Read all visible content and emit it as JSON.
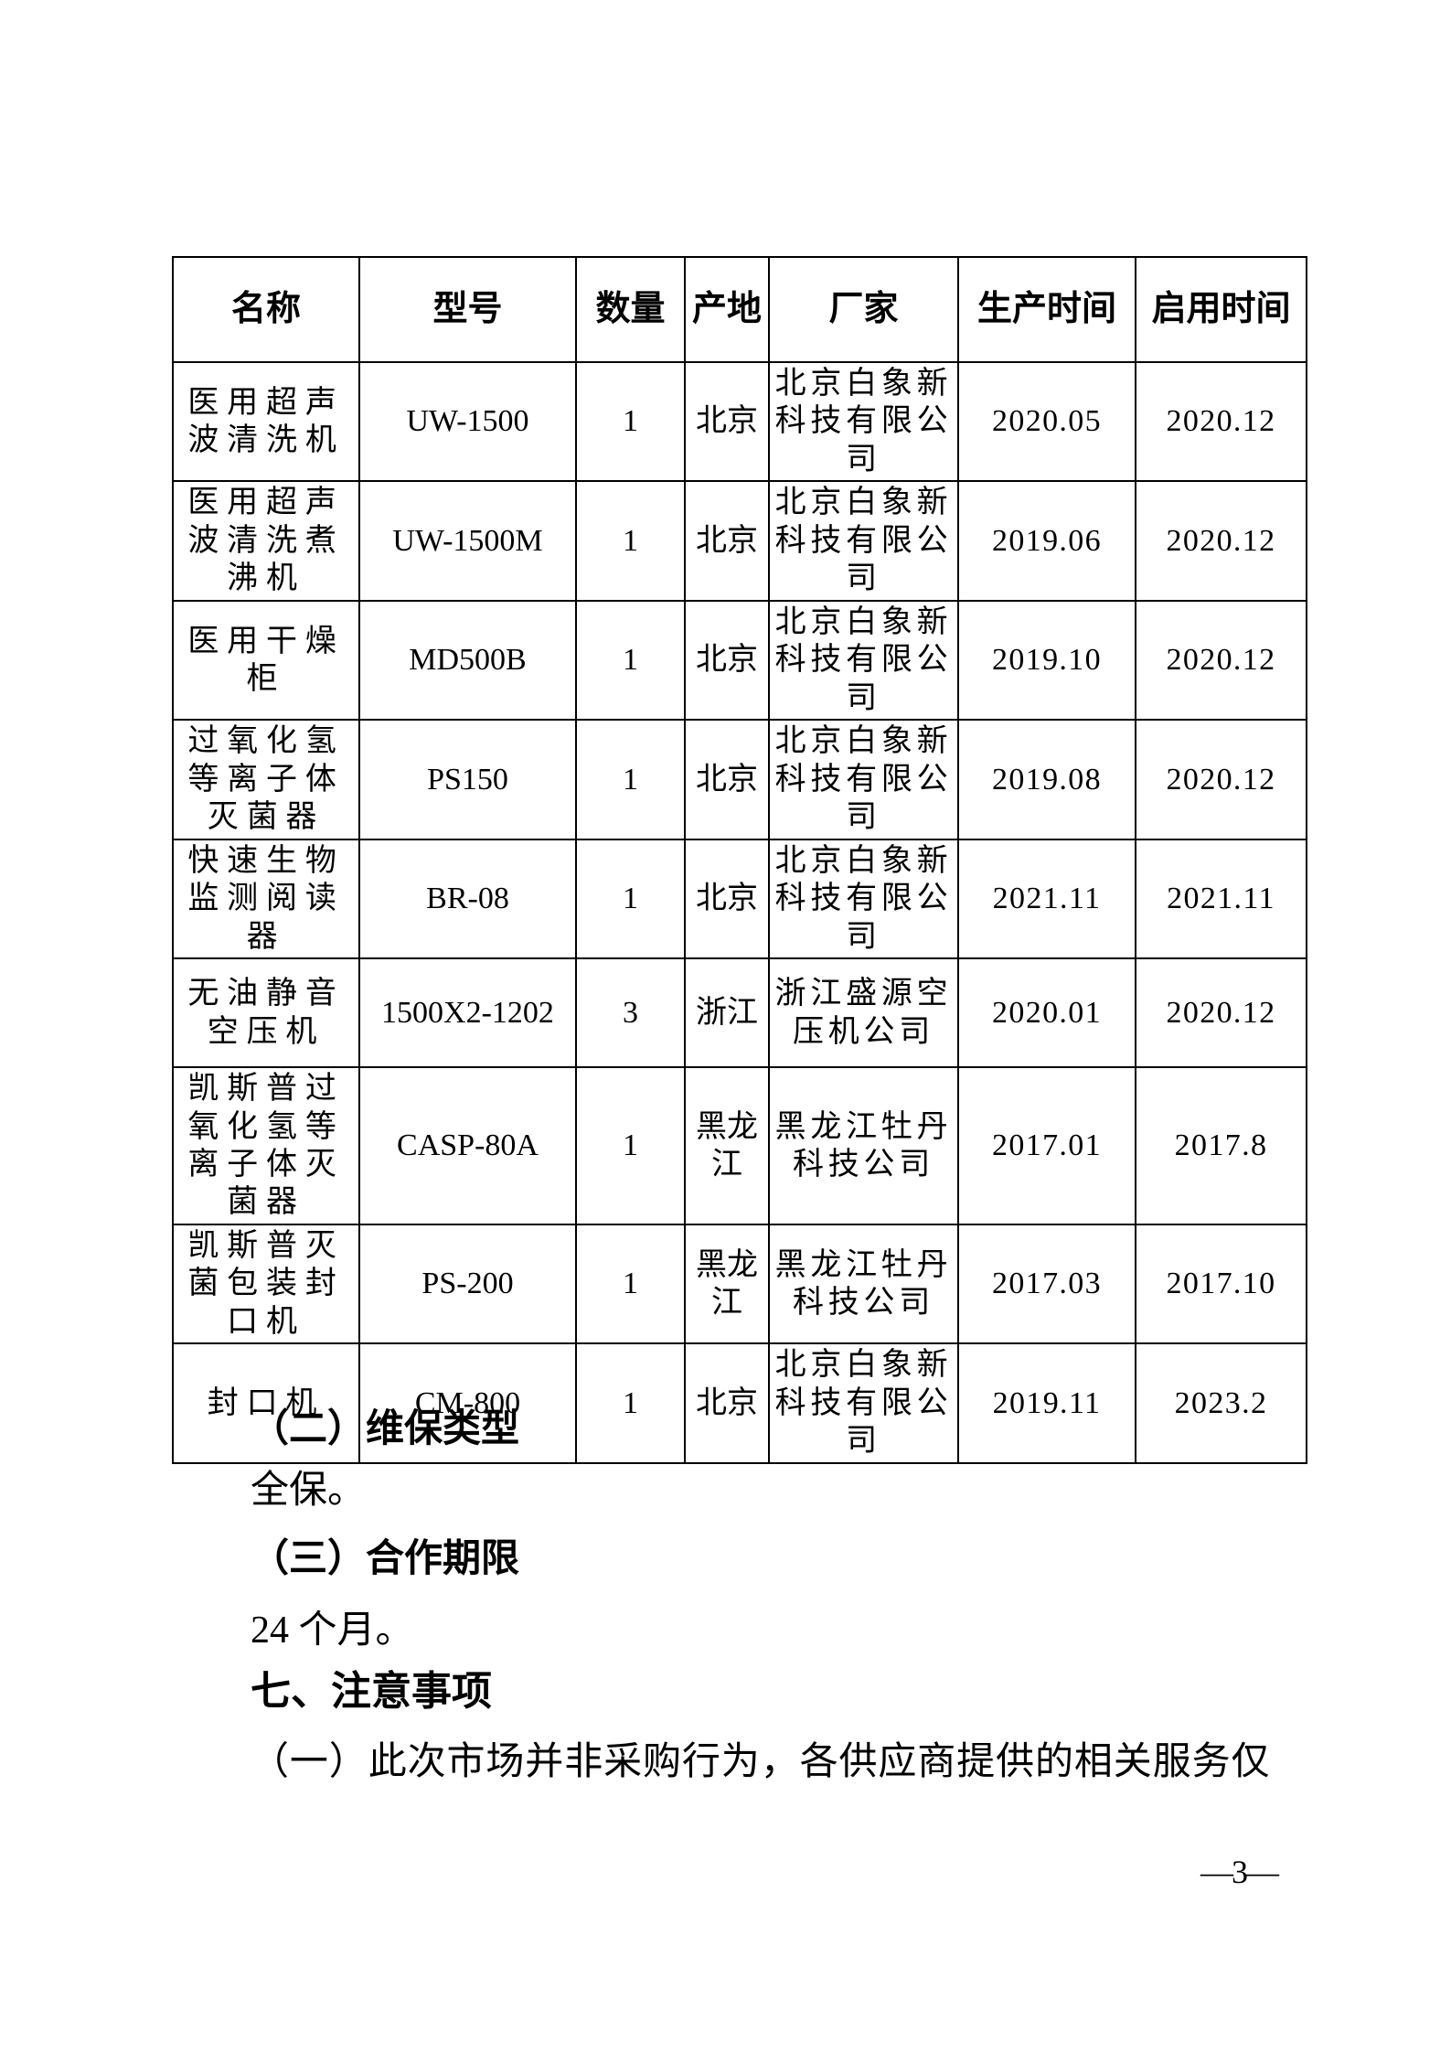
{
  "table": {
    "headers": {
      "name": "名称",
      "model": "型号",
      "qty": "数量",
      "origin": "产地",
      "maker": "厂家",
      "prod_date": "生产时间",
      "start_date": "启用时间"
    },
    "rows": [
      {
        "name": "医用超声波清洗机",
        "model": "UW-1500",
        "qty": "1",
        "origin": "北京",
        "maker": "北京白象新科技有限公司",
        "prod_date": "2020.05",
        "start_date": "2020.12"
      },
      {
        "name": "医用超声波清洗煮沸机",
        "model": "UW-1500M",
        "qty": "1",
        "origin": "北京",
        "maker": "北京白象新科技有限公司",
        "prod_date": "2019.06",
        "start_date": "2020.12"
      },
      {
        "name": "医用干燥柜",
        "model": "MD500B",
        "qty": "1",
        "origin": "北京",
        "maker": "北京白象新科技有限公司",
        "prod_date": "2019.10",
        "start_date": "2020.12"
      },
      {
        "name": "过氧化氢等离子体灭菌器",
        "model": "PS150",
        "qty": "1",
        "origin": "北京",
        "maker": "北京白象新科技有限公司",
        "prod_date": "2019.08",
        "start_date": "2020.12"
      },
      {
        "name": "快速生物监测阅读器",
        "model": "BR-08",
        "qty": "1",
        "origin": "北京",
        "maker": "北京白象新科技有限公司",
        "prod_date": "2021.11",
        "start_date": "2021.11"
      },
      {
        "name": "无油静音空压机",
        "model": "1500X2-1202",
        "qty": "3",
        "origin": "浙江",
        "maker": "浙江盛源空压机公司",
        "prod_date": "2020.01",
        "start_date": "2020.12"
      },
      {
        "name": "凯斯普过氧化氢等离子体灭菌器",
        "model": "CASP-80A",
        "qty": "1",
        "origin": "黑龙江",
        "maker": "黑龙江牡丹科技公司",
        "prod_date": "2017.01",
        "start_date": "2017.8"
      },
      {
        "name": "凯斯普灭菌包装封口机",
        "model": "PS-200",
        "qty": "1",
        "origin": "黑龙江",
        "maker": "黑龙江牡丹科技公司",
        "prod_date": "2017.03",
        "start_date": "2017.10"
      },
      {
        "name": "封口机",
        "model": "CM-800",
        "qty": "1",
        "origin": "北京",
        "maker": "北京白象新科技有限公司",
        "prod_date": "2019.11",
        "start_date": "2023.2"
      }
    ]
  },
  "sections": {
    "sec2_heading": "（二）维保类型",
    "sec2_body": "全保。",
    "sec3_heading": "（三）合作期限",
    "sec3_body": "24 个月。",
    "sec7_heading": "七、注意事项",
    "notice_item_1": "（一）此次市场并非采购行为，各供应商提供的相关服务仅"
  },
  "footer": {
    "page_number": "—3—"
  }
}
